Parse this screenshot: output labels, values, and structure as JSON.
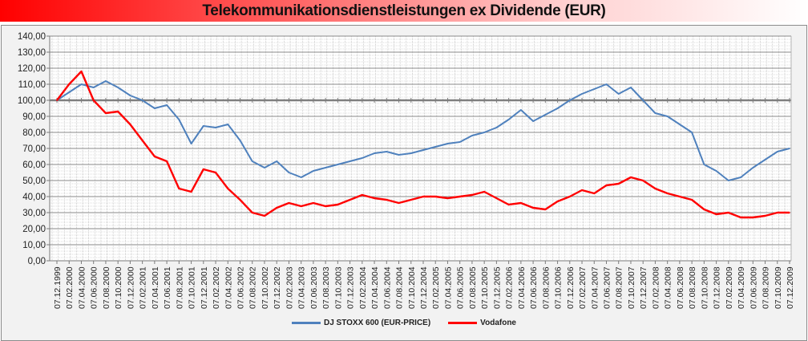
{
  "chart_data": {
    "type": "line",
    "title": "Telekommunikationsdienstleistungen ex Dividende (EUR)",
    "xlabel": "",
    "ylabel": "",
    "ylim": [
      0,
      140
    ],
    "yticks": [
      "0,00",
      "10,00",
      "20,00",
      "30,00",
      "40,00",
      "50,00",
      "60,00",
      "70,00",
      "80,00",
      "90,00",
      "100,00",
      "110,00",
      "120,00",
      "130,00",
      "140,00"
    ],
    "grid": true,
    "legend_position": "bottom",
    "reference_line": 100,
    "x": [
      "07.12.1999",
      "07.02.2000",
      "07.04.2000",
      "07.06.2000",
      "07.08.2000",
      "07.10.2000",
      "07.12.2000",
      "07.02.2001",
      "07.04.2001",
      "07.06.2001",
      "07.08.2001",
      "07.10.2001",
      "07.12.2001",
      "07.02.2002",
      "07.04.2002",
      "07.06.2002",
      "07.08.2002",
      "07.10.2002",
      "07.12.2002",
      "07.02.2003",
      "07.04.2003",
      "07.06.2003",
      "07.08.2003",
      "07.10.2003",
      "07.12.2003",
      "07.02.2004",
      "07.04.2004",
      "07.06.2004",
      "07.08.2004",
      "07.10.2004",
      "07.12.2004",
      "07.02.2005",
      "07.04.2005",
      "07.06.2005",
      "07.08.2005",
      "07.10.2005",
      "07.12.2005",
      "07.02.2006",
      "07.04.2006",
      "07.06.2006",
      "07.08.2006",
      "07.10.2006",
      "07.12.2006",
      "07.02.2007",
      "07.04.2007",
      "07.06.2007",
      "07.08.2007",
      "07.10.2007",
      "07.12.2007",
      "07.02.2008",
      "07.04.2008",
      "07.06.2008",
      "07.08.2008",
      "07.10.2008",
      "07.12.2008",
      "07.02.2009",
      "07.04.2009",
      "07.06.2009",
      "07.08.2009",
      "07.10.2009",
      "07.12.2009"
    ],
    "series": [
      {
        "name": "DJ STOXX 600 (EUR-PRICE)",
        "color": "#4f81bd",
        "values": [
          100,
          105,
          110,
          108,
          112,
          108,
          103,
          100,
          95,
          97,
          88,
          73,
          84,
          83,
          85,
          75,
          62,
          58,
          62,
          55,
          52,
          56,
          58,
          60,
          62,
          64,
          67,
          68,
          66,
          67,
          69,
          71,
          73,
          74,
          78,
          80,
          83,
          88,
          94,
          87,
          91,
          95,
          100,
          104,
          107,
          110,
          104,
          108,
          100,
          92,
          90,
          85,
          80,
          60,
          56,
          50,
          52,
          58,
          63,
          68,
          70
        ]
      },
      {
        "name": "Vodafone",
        "color": "#ff0000",
        "values": [
          100,
          110,
          118,
          100,
          92,
          93,
          85,
          75,
          65,
          62,
          45,
          43,
          57,
          55,
          45,
          38,
          30,
          28,
          33,
          36,
          34,
          36,
          34,
          35,
          38,
          41,
          39,
          38,
          36,
          38,
          40,
          40,
          39,
          40,
          41,
          43,
          39,
          35,
          36,
          33,
          32,
          37,
          40,
          44,
          42,
          47,
          48,
          52,
          50,
          45,
          42,
          40,
          38,
          32,
          29,
          30,
          27,
          27,
          28,
          30,
          30
        ]
      }
    ]
  }
}
